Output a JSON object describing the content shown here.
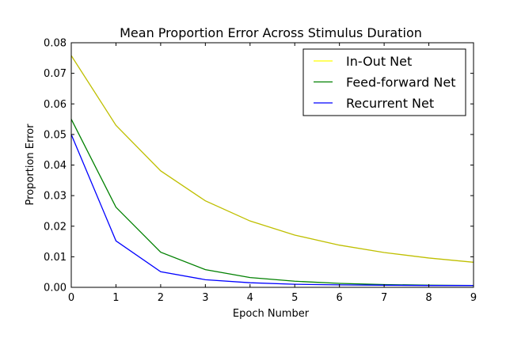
{
  "chart_data": {
    "type": "line",
    "title": "Mean Proportion Error Across Stimulus Duration",
    "xlabel": "Epoch Number",
    "ylabel": "Proportion Error",
    "xlim": [
      0,
      9
    ],
    "ylim": [
      0,
      0.08
    ],
    "xticks": [
      0,
      1,
      2,
      3,
      4,
      5,
      6,
      7,
      8,
      9
    ],
    "xtick_labels": [
      "0",
      "1",
      "2",
      "3",
      "4",
      "5",
      "6",
      "7",
      "8",
      "9"
    ],
    "yticks": [
      0,
      0.01,
      0.02,
      0.03,
      0.04,
      0.05,
      0.06,
      0.07,
      0.08
    ],
    "ytick_labels": [
      "0.00",
      "0.01",
      "0.02",
      "0.03",
      "0.04",
      "0.05",
      "0.06",
      "0.07",
      "0.08"
    ],
    "grid": false,
    "legend_position": "top-right",
    "x": [
      0,
      1,
      2,
      3,
      4,
      5,
      6,
      7,
      8,
      9
    ],
    "series": [
      {
        "name": "In-Out Net",
        "color": "#bfbf00",
        "legend_color": "#ffff00",
        "values": [
          0.0758,
          0.053,
          0.0381,
          0.0283,
          0.0217,
          0.0171,
          0.0138,
          0.0114,
          0.0096,
          0.0082
        ]
      },
      {
        "name": "Feed-forward Net",
        "color": "#008000",
        "legend_color": "#008000",
        "values": [
          0.055,
          0.0262,
          0.0115,
          0.0058,
          0.0032,
          0.002,
          0.0013,
          0.0009,
          0.0007,
          0.0006
        ]
      },
      {
        "name": "Recurrent Net",
        "color": "#0000ff",
        "legend_color": "#0000ff",
        "values": [
          0.05,
          0.0152,
          0.0051,
          0.0025,
          0.0015,
          0.001,
          0.0008,
          0.0007,
          0.0006,
          0.0006
        ]
      }
    ]
  }
}
